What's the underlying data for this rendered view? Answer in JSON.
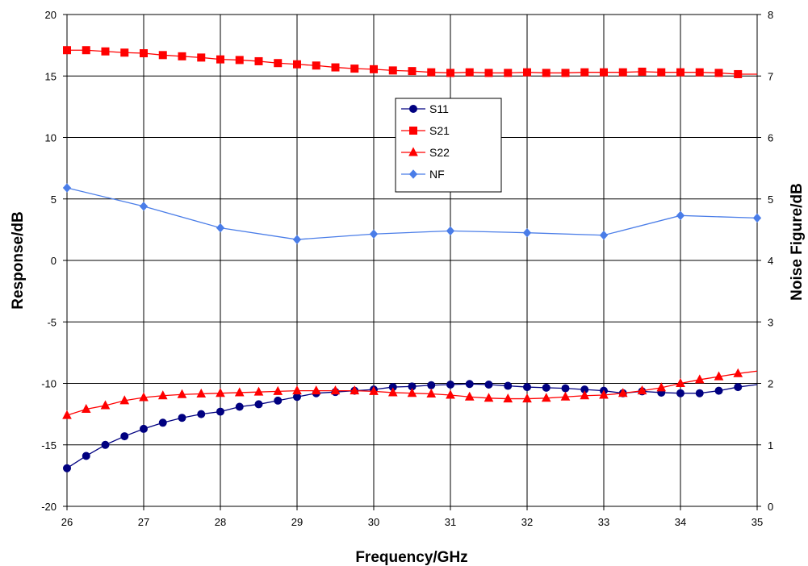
{
  "chart_data": {
    "type": "line",
    "xlabel": "Frequency/GHz",
    "ylabel": "Response/dB",
    "y2label": "Noise Figure/dB",
    "xlim": [
      26,
      35
    ],
    "ylim": [
      -20,
      20
    ],
    "y2lim": [
      0,
      8
    ],
    "xticks": [
      "26",
      "27",
      "28",
      "29",
      "30",
      "31",
      "32",
      "33",
      "34",
      "35"
    ],
    "yticks": [
      "-20",
      "-15",
      "-10",
      "-5",
      "0",
      "5",
      "10",
      "15",
      "20"
    ],
    "y2ticks": [
      "0",
      "1",
      "2",
      "3",
      "4",
      "5",
      "6",
      "7",
      "8"
    ],
    "grid": true,
    "legend_position": "center-top",
    "series": [
      {
        "name": "S11",
        "axis": "left",
        "color": "#000080",
        "marker": "circle",
        "x": [
          26,
          26.25,
          26.5,
          26.75,
          27,
          27.25,
          27.5,
          27.75,
          28,
          28.25,
          28.5,
          28.75,
          29,
          29.25,
          29.5,
          29.75,
          30,
          30.25,
          30.5,
          30.75,
          31,
          31.25,
          31.5,
          31.75,
          32,
          32.25,
          32.5,
          32.75,
          33,
          33.25,
          33.5,
          33.75,
          34,
          34.25,
          34.5,
          34.75
        ],
        "y": [
          -16.9,
          -15.9,
          -15.0,
          -14.3,
          -13.7,
          -13.2,
          -12.8,
          -12.5,
          -12.3,
          -11.9,
          -11.7,
          -11.4,
          -11.1,
          -10.8,
          -10.7,
          -10.6,
          -10.5,
          -10.3,
          -10.25,
          -10.15,
          -10.1,
          -10.05,
          -10.1,
          -10.2,
          -10.3,
          -10.35,
          -10.4,
          -10.5,
          -10.6,
          -10.8,
          -10.65,
          -10.75,
          -10.8,
          -10.8,
          -10.6,
          -10.3
        ],
        "line_extends_to": [
          35,
          -10.1
        ]
      },
      {
        "name": "S21",
        "axis": "left",
        "color": "#ff0000",
        "marker": "square",
        "x": [
          26,
          26.25,
          26.5,
          26.75,
          27,
          27.25,
          27.5,
          27.75,
          28,
          28.25,
          28.5,
          28.75,
          29,
          29.25,
          29.5,
          29.75,
          30,
          30.25,
          30.5,
          30.75,
          31,
          31.25,
          31.5,
          31.75,
          32,
          32.25,
          32.5,
          32.75,
          33,
          33.25,
          33.5,
          33.75,
          34,
          34.25,
          34.5,
          34.75
        ],
        "y": [
          17.1,
          17.1,
          17.0,
          16.9,
          16.85,
          16.7,
          16.6,
          16.5,
          16.35,
          16.3,
          16.2,
          16.05,
          15.95,
          15.85,
          15.7,
          15.6,
          15.55,
          15.45,
          15.4,
          15.3,
          15.25,
          15.3,
          15.25,
          15.25,
          15.3,
          15.25,
          15.25,
          15.3,
          15.3,
          15.3,
          15.35,
          15.3,
          15.3,
          15.3,
          15.25,
          15.15
        ],
        "line_extends_to": [
          35,
          15.15
        ]
      },
      {
        "name": "S22",
        "axis": "left",
        "color": "#ff0000",
        "marker": "triangle",
        "x": [
          26,
          26.25,
          26.5,
          26.75,
          27,
          27.25,
          27.5,
          27.75,
          28,
          28.25,
          28.5,
          28.75,
          29,
          29.25,
          29.5,
          29.75,
          30,
          30.25,
          30.5,
          30.75,
          31,
          31.25,
          31.5,
          31.75,
          32,
          32.25,
          32.5,
          32.75,
          33,
          33.25,
          33.5,
          33.75,
          34,
          34.25,
          34.5,
          34.75
        ],
        "y": [
          -12.6,
          -12.1,
          -11.8,
          -11.4,
          -11.15,
          -11.0,
          -10.9,
          -10.85,
          -10.8,
          -10.75,
          -10.7,
          -10.65,
          -10.6,
          -10.6,
          -10.6,
          -10.6,
          -10.65,
          -10.75,
          -10.8,
          -10.85,
          -10.95,
          -11.1,
          -11.2,
          -11.25,
          -11.25,
          -11.2,
          -11.1,
          -11.0,
          -10.95,
          -10.8,
          -10.6,
          -10.35,
          -10.0,
          -9.7,
          -9.45,
          -9.2
        ],
        "line_extends_to": [
          35,
          -9.0
        ]
      },
      {
        "name": "NF",
        "axis": "right",
        "color": "#4a7de8",
        "marker": "diamond",
        "x": [
          26,
          27,
          28,
          29,
          30,
          31,
          32,
          33,
          34,
          35
        ],
        "y": [
          5.18,
          4.88,
          4.53,
          4.34,
          4.43,
          4.48,
          4.45,
          4.41,
          4.73,
          4.69
        ]
      }
    ]
  }
}
